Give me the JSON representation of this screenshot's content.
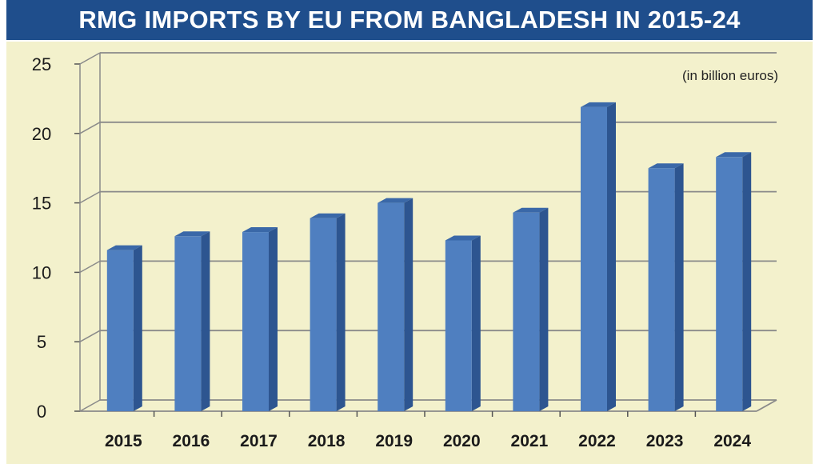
{
  "chart_data": {
    "type": "bar",
    "title": "RMG IMPORTS BY EU FROM BANGLADESH IN 2015-24",
    "unit_note": "(in billion euros)",
    "xlabel": "",
    "ylabel": "",
    "categories": [
      "2015",
      "2016",
      "2017",
      "2018",
      "2019",
      "2020",
      "2021",
      "2022",
      "2023",
      "2024"
    ],
    "values": [
      11.6,
      12.6,
      12.9,
      13.9,
      15.0,
      12.3,
      14.3,
      21.9,
      17.5,
      18.3
    ],
    "ylim": [
      0,
      25
    ],
    "yticks": [
      "0",
      "5",
      "10",
      "15",
      "20",
      "25"
    ],
    "grid": true,
    "colors": {
      "title_bg": "#1f4e8c",
      "background": "#f3f1cc",
      "bar_front": "#4f7fc0",
      "bar_side": "#2d5590",
      "bar_top": "#3a68a8",
      "gridline": "#8a8a8a"
    }
  }
}
